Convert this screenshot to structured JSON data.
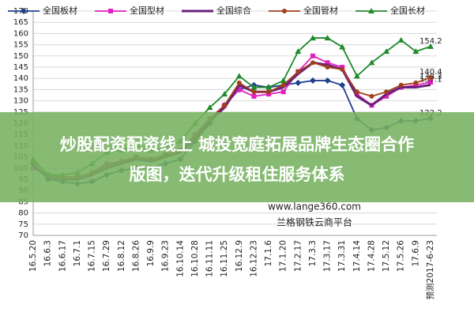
{
  "chart_data": {
    "type": "line",
    "categories": [
      "16.5.20",
      "16.6.3",
      "16.6.17",
      "16.7.1",
      "16.7.15",
      "16.7.29",
      "16.8.12",
      "16.8.26",
      "16.9.9",
      "16.9.23",
      "16.10.14",
      "16.10.28",
      "16.11.11",
      "16.11.25",
      "16.12.9",
      "16.12.23",
      "17.1.6",
      "17.1.20",
      "17.2.17",
      "17.3.3",
      "17.3.17",
      "17.3.31",
      "17.4.14",
      "17.4.28",
      "17.5.12",
      "17.5.26",
      "17.6.9",
      "预测2017-6-23"
    ],
    "series": [
      {
        "name": "全国板材",
        "color": "#1f3f8f",
        "marker": "diamond",
        "values": [
          102,
          95,
          94,
          93,
          94,
          97,
          99,
          100,
          100,
          102,
          104,
          112,
          120,
          128,
          135,
          137,
          136,
          137,
          138,
          139,
          139,
          137,
          122,
          117,
          118,
          121,
          121,
          122.2
        ]
      },
      {
        "name": "全国型材",
        "color": "#e020c0",
        "marker": "square",
        "values": [
          100,
          97,
          96,
          96,
          98,
          102,
          103,
          105,
          104,
          106,
          108,
          115,
          122,
          128,
          135,
          132,
          133,
          134,
          143,
          150,
          147,
          145,
          133,
          128,
          132,
          136,
          137,
          138.3
        ]
      },
      {
        "name": "全国综合",
        "color": "#6a1f7a",
        "marker": "none",
        "values": [
          101,
          96,
          95,
          95,
          97,
          100,
          102,
          104,
          103,
          105,
          107,
          113,
          121,
          127,
          137,
          134,
          134,
          136,
          142,
          147,
          146,
          144,
          132,
          128,
          133,
          136,
          136,
          137.1
        ]
      },
      {
        "name": "全国管材",
        "color": "#a0401a",
        "marker": "circle",
        "values": [
          103,
          97,
          96,
          96,
          98,
          101,
          103,
          105,
          104,
          106,
          108,
          114,
          122,
          128,
          138,
          134,
          134,
          137,
          143,
          147,
          145,
          144,
          134,
          132,
          134,
          137,
          138,
          140.4
        ]
      },
      {
        "name": "全国长材",
        "color": "#1e8a2a",
        "marker": "triangle",
        "values": [
          104,
          97,
          97,
          98,
          102,
          107,
          108,
          110,
          108,
          109,
          112,
          120,
          127,
          133,
          141,
          136,
          136,
          139,
          152,
          158,
          158,
          154,
          141,
          147,
          152,
          157,
          152,
          154.2
        ]
      }
    ],
    "ylim": [
      70,
      170
    ],
    "yticks": [
      70,
      75,
      80,
      85,
      90,
      95,
      100,
      105,
      110,
      115,
      120,
      125,
      130,
      135,
      140,
      145,
      150,
      155,
      160,
      165,
      170
    ],
    "grid": true,
    "watermark": "www.lange360.com",
    "source": "兰格钢铁云商平台"
  },
  "banner": [
    "炒股配资配资线上 城投宽庭拓展品牌生态圈合作",
    "版图，迭代升级租住服务体系"
  ]
}
